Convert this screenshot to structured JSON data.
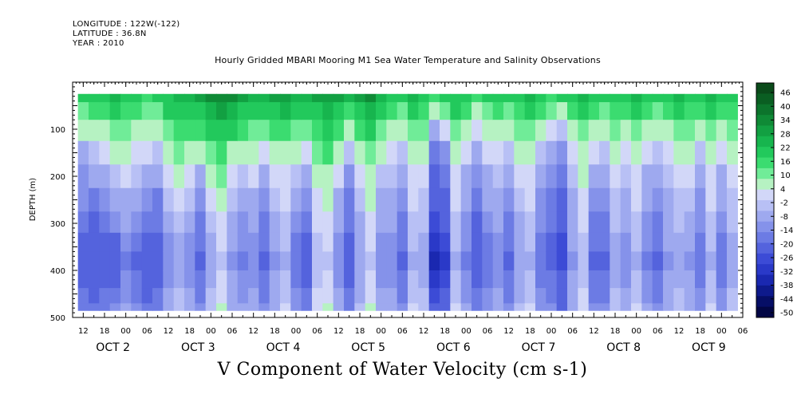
{
  "header": {
    "longitude": "LONGITUDE : 122W(-122)",
    "latitude": "LATITUDE : 36.8N",
    "year": "YEAR : 2010",
    "title": "Hourly Gridded MBARI Mooring M1 Sea Water Temperature and Salinity Observations"
  },
  "footer": {
    "variable": "V Component of Water Velocity (cm s-1)"
  },
  "chart_data": {
    "type": "heatmap",
    "title": "Hourly Gridded MBARI Mooring M1 Sea Water Temperature and Salinity Observations",
    "xlabel": "",
    "ylabel": "DEPTH (m)",
    "colorbar_label": "V Component of Water Velocity (cm s-1)",
    "x_hour_ticks": [
      "12",
      "18",
      "00",
      "06",
      "12",
      "18",
      "00",
      "06",
      "12",
      "18",
      "00",
      "06",
      "12",
      "18",
      "00",
      "06",
      "12",
      "18",
      "00",
      "06",
      "12",
      "18",
      "00",
      "06",
      "12",
      "18",
      "00",
      "06",
      "12",
      "18",
      "00",
      "06"
    ],
    "x_day_labels": [
      "OCT 2",
      "OCT 3",
      "OCT 4",
      "OCT 5",
      "OCT 6",
      "OCT 7",
      "OCT 8",
      "OCT 9"
    ],
    "x_day_label_hours": [
      0,
      24,
      48,
      72,
      96,
      120,
      144,
      168
    ],
    "xlim_hours_from_oct2": [
      -15,
      174
    ],
    "ylim_depth_m": [
      500,
      0
    ],
    "y_ticks": [
      100,
      200,
      300,
      400,
      500
    ],
    "data_depth_range_m": [
      25,
      485
    ],
    "colorbar_levels": [
      46,
      40,
      34,
      28,
      22,
      16,
      10,
      4,
      -2,
      -8,
      -14,
      -20,
      -26,
      -32,
      -38,
      -44,
      -50
    ],
    "colorbar_colors": [
      "#0a4a1a",
      "#0a5e22",
      "#0c742c",
      "#0f8a36",
      "#12a042",
      "#17b54e",
      "#22c95c",
      "#3bdc70",
      "#70ec98",
      "#b6f2c2",
      "#d2d7f8",
      "#b8c0f5",
      "#9ea9ef",
      "#8592ea",
      "#6c7be4",
      "#5463dd",
      "#3c4bd6",
      "#2a39c8",
      "#1a28b0",
      "#0e1a8c",
      "#060e66",
      "#020644"
    ],
    "columns": [
      {
        "hour": -12,
        "v": [
          20,
          14,
          6,
          -6,
          -10,
          -12,
          -16,
          -18,
          -20,
          -18,
          -16,
          -16
        ]
      },
      {
        "hour": -9,
        "v": [
          22,
          16,
          8,
          -2,
          -8,
          -14,
          -18,
          -20,
          -22,
          -20,
          -18,
          -16
        ]
      },
      {
        "hour": -6,
        "v": [
          24,
          18,
          10,
          4,
          -4,
          -10,
          -16,
          -20,
          -22,
          -20,
          -16,
          -14
        ]
      },
      {
        "hour": -3,
        "v": [
          26,
          20,
          12,
          6,
          -2,
          -6,
          -12,
          -18,
          -20,
          -18,
          -14,
          -12
        ]
      },
      {
        "hour": 0,
        "v": [
          22,
          18,
          12,
          6,
          2,
          -4,
          -8,
          -12,
          -14,
          -12,
          -10,
          -8
        ]
      },
      {
        "hour": 3,
        "v": [
          20,
          16,
          10,
          4,
          -2,
          -8,
          -12,
          -16,
          -18,
          -16,
          -14,
          -12
        ]
      },
      {
        "hour": 6,
        "v": [
          18,
          14,
          8,
          2,
          -6,
          -12,
          -16,
          -20,
          -22,
          -20,
          -18,
          -16
        ]
      },
      {
        "hour": 9,
        "v": [
          20,
          14,
          8,
          0,
          -8,
          -14,
          -16,
          -18,
          -20,
          -18,
          -16,
          -16
        ]
      },
      {
        "hour": 12,
        "v": [
          24,
          20,
          14,
          8,
          2,
          -2,
          -6,
          -10,
          -12,
          -10,
          -8,
          -6
        ]
      },
      {
        "hour": 15,
        "v": [
          26,
          22,
          18,
          12,
          8,
          4,
          0,
          -4,
          -6,
          -4,
          -2,
          0
        ]
      },
      {
        "hour": 18,
        "v": [
          28,
          24,
          18,
          10,
          4,
          0,
          -6,
          -10,
          -12,
          -10,
          -8,
          -6
        ]
      },
      {
        "hour": 21,
        "v": [
          30,
          24,
          16,
          6,
          -4,
          -10,
          -14,
          -16,
          -18,
          -16,
          -14,
          -12
        ]
      },
      {
        "hour": 24,
        "v": [
          34,
          28,
          22,
          14,
          8,
          4,
          0,
          -4,
          -6,
          -4,
          -2,
          0
        ]
      },
      {
        "hour": 27,
        "v": [
          36,
          30,
          24,
          18,
          12,
          8,
          4,
          2,
          0,
          2,
          4,
          6
        ]
      },
      {
        "hour": 30,
        "v": [
          34,
          28,
          20,
          10,
          4,
          -2,
          -6,
          -8,
          -10,
          -8,
          -6,
          -4
        ]
      },
      {
        "hour": 33,
        "v": [
          30,
          24,
          16,
          6,
          -2,
          -6,
          -10,
          -12,
          -14,
          -12,
          -10,
          -8
        ]
      },
      {
        "hour": 36,
        "v": [
          28,
          22,
          14,
          8,
          2,
          -4,
          -8,
          -10,
          -12,
          -10,
          -8,
          -6
        ]
      },
      {
        "hour": 39,
        "v": [
          26,
          20,
          12,
          4,
          -4,
          -10,
          -14,
          -16,
          -18,
          -16,
          -14,
          -12
        ]
      },
      {
        "hour": 42,
        "v": [
          30,
          24,
          16,
          8,
          2,
          -2,
          -6,
          -8,
          -10,
          -8,
          -6,
          -4
        ]
      },
      {
        "hour": 45,
        "v": [
          32,
          26,
          18,
          10,
          4,
          2,
          0,
          -2,
          -4,
          -2,
          0,
          2
        ]
      },
      {
        "hour": 48,
        "v": [
          28,
          22,
          14,
          6,
          -2,
          -8,
          -12,
          -14,
          -16,
          -14,
          -12,
          -10
        ]
      },
      {
        "hour": 51,
        "v": [
          26,
          20,
          12,
          2,
          -6,
          -12,
          -16,
          -18,
          -20,
          -18,
          -16,
          -14
        ]
      },
      {
        "hour": 54,
        "v": [
          30,
          24,
          18,
          12,
          8,
          4,
          2,
          0,
          -2,
          0,
          2,
          4
        ]
      },
      {
        "hour": 57,
        "v": [
          32,
          28,
          22,
          16,
          10,
          6,
          4,
          2,
          0,
          2,
          4,
          6
        ]
      },
      {
        "hour": 60,
        "v": [
          30,
          24,
          16,
          8,
          2,
          -4,
          -8,
          -10,
          -12,
          -10,
          -8,
          -6
        ]
      },
      {
        "hour": 63,
        "v": [
          26,
          18,
          8,
          -2,
          -10,
          -14,
          -16,
          -18,
          -20,
          -18,
          -16,
          -14
        ]
      },
      {
        "hour": 66,
        "v": [
          30,
          24,
          16,
          8,
          4,
          0,
          -4,
          -6,
          -8,
          -6,
          -4,
          -2
        ]
      },
      {
        "hour": 69,
        "v": [
          34,
          28,
          20,
          14,
          10,
          6,
          4,
          2,
          0,
          2,
          4,
          6
        ]
      },
      {
        "hour": 72,
        "v": [
          28,
          22,
          14,
          6,
          0,
          -4,
          -8,
          -10,
          -12,
          -10,
          -8,
          -6
        ]
      },
      {
        "hour": 75,
        "v": [
          24,
          18,
          10,
          4,
          0,
          -4,
          -8,
          -10,
          -12,
          -10,
          -8,
          -6
        ]
      },
      {
        "hour": 78,
        "v": [
          22,
          14,
          6,
          -2,
          -8,
          -12,
          -14,
          -16,
          -18,
          -16,
          -14,
          -12
        ]
      },
      {
        "hour": 81,
        "v": [
          26,
          20,
          14,
          8,
          4,
          2,
          0,
          -2,
          -4,
          -2,
          0,
          2
        ]
      },
      {
        "hour": 84,
        "v": [
          24,
          18,
          12,
          6,
          2,
          0,
          -2,
          -4,
          -6,
          -4,
          -2,
          0
        ]
      },
      {
        "hour": 87,
        "v": [
          16,
          6,
          -8,
          -16,
          -20,
          -22,
          -26,
          -30,
          -32,
          -30,
          -26,
          -22
        ]
      },
      {
        "hour": 90,
        "v": [
          20,
          12,
          2,
          -10,
          -16,
          -20,
          -22,
          -26,
          -28,
          -26,
          -22,
          -18
        ]
      },
      {
        "hour": 93,
        "v": [
          24,
          20,
          14,
          8,
          4,
          2,
          0,
          -2,
          -4,
          -2,
          0,
          2
        ]
      },
      {
        "hour": 96,
        "v": [
          22,
          16,
          8,
          2,
          -4,
          -8,
          -10,
          -12,
          -14,
          -12,
          -10,
          -8
        ]
      },
      {
        "hour": 99,
        "v": [
          18,
          10,
          2,
          -6,
          -12,
          -16,
          -18,
          -20,
          -20,
          -18,
          -16,
          -14
        ]
      },
      {
        "hour": 102,
        "v": [
          20,
          14,
          8,
          2,
          -4,
          -8,
          -12,
          -14,
          -16,
          -14,
          -12,
          -10
        ]
      },
      {
        "hour": 105,
        "v": [
          22,
          16,
          10,
          4,
          0,
          -4,
          -8,
          -10,
          -12,
          -10,
          -8,
          -6
        ]
      },
      {
        "hour": 108,
        "v": [
          20,
          14,
          6,
          -2,
          -8,
          -12,
          -14,
          -16,
          -18,
          -16,
          -14,
          -12
        ]
      },
      {
        "hour": 111,
        "v": [
          24,
          18,
          12,
          6,
          2,
          -2,
          -4,
          -6,
          -8,
          -6,
          -4,
          -2
        ]
      },
      {
        "hour": 114,
        "v": [
          26,
          20,
          14,
          8,
          4,
          2,
          0,
          -2,
          -4,
          -2,
          0,
          2
        ]
      },
      {
        "hour": 117,
        "v": [
          22,
          16,
          8,
          0,
          -6,
          -10,
          -12,
          -14,
          -16,
          -14,
          -12,
          -10
        ]
      },
      {
        "hour": 120,
        "v": [
          18,
          12,
          4,
          -4,
          -10,
          -14,
          -16,
          -18,
          -18,
          -16,
          -14,
          -12
        ]
      },
      {
        "hour": 123,
        "v": [
          20,
          10,
          -2,
          -12,
          -16,
          -20,
          -22,
          -24,
          -24,
          -22,
          -20,
          -18
        ]
      },
      {
        "hour": 126,
        "v": [
          24,
          18,
          10,
          4,
          0,
          -4,
          -6,
          -8,
          -10,
          -8,
          -6,
          -4
        ]
      },
      {
        "hour": 129,
        "v": [
          26,
          20,
          14,
          8,
          6,
          4,
          2,
          0,
          -2,
          0,
          2,
          4
        ]
      },
      {
        "hour": 132,
        "v": [
          22,
          16,
          8,
          2,
          -4,
          -10,
          -14,
          -16,
          -18,
          -16,
          -14,
          -12
        ]
      },
      {
        "hour": 135,
        "v": [
          20,
          14,
          6,
          -2,
          -8,
          -12,
          -14,
          -16,
          -18,
          -16,
          -14,
          -12
        ]
      },
      {
        "hour": 138,
        "v": [
          24,
          18,
          12,
          6,
          2,
          0,
          -2,
          -4,
          -6,
          -4,
          -2,
          0
        ]
      },
      {
        "hour": 141,
        "v": [
          22,
          16,
          10,
          4,
          0,
          -4,
          -8,
          -10,
          -12,
          -10,
          -8,
          -6
        ]
      },
      {
        "hour": 144,
        "v": [
          26,
          20,
          14,
          8,
          4,
          2,
          0,
          -2,
          -4,
          -2,
          0,
          2
        ]
      },
      {
        "hour": 147,
        "v": [
          24,
          18,
          10,
          2,
          -4,
          -8,
          -10,
          -12,
          -14,
          -12,
          -10,
          -8
        ]
      },
      {
        "hour": 150,
        "v": [
          20,
          14,
          6,
          -2,
          -8,
          -12,
          -14,
          -16,
          -18,
          -16,
          -14,
          -12
        ]
      },
      {
        "hour": 153,
        "v": [
          22,
          16,
          10,
          4,
          0,
          -4,
          -6,
          -8,
          -10,
          -8,
          -6,
          -4
        ]
      },
      {
        "hour": 156,
        "v": [
          26,
          20,
          14,
          8,
          4,
          0,
          -2,
          -4,
          -6,
          -4,
          -2,
          0
        ]
      },
      {
        "hour": 159,
        "v": [
          24,
          18,
          12,
          6,
          2,
          -2,
          -6,
          -8,
          -10,
          -8,
          -6,
          -4
        ]
      },
      {
        "hour": 162,
        "v": [
          22,
          16,
          8,
          0,
          -6,
          -10,
          -12,
          -14,
          -16,
          -14,
          -12,
          -10
        ]
      },
      {
        "hour": 165,
        "v": [
          26,
          20,
          14,
          8,
          4,
          2,
          0,
          -2,
          -4,
          -2,
          0,
          2
        ]
      },
      {
        "hour": 168,
        "v": [
          24,
          18,
          10,
          2,
          -4,
          -8,
          -12,
          -14,
          -16,
          -14,
          -12,
          -10
        ]
      },
      {
        "hour": 171,
        "v": [
          22,
          18,
          12,
          6,
          2,
          0,
          -2,
          -4,
          -6,
          -4,
          -2,
          0
        ]
      }
    ],
    "column_depths_m": [
      25,
      60,
      100,
      150,
      200,
      250,
      300,
      340,
      380,
      420,
      455,
      485
    ]
  }
}
